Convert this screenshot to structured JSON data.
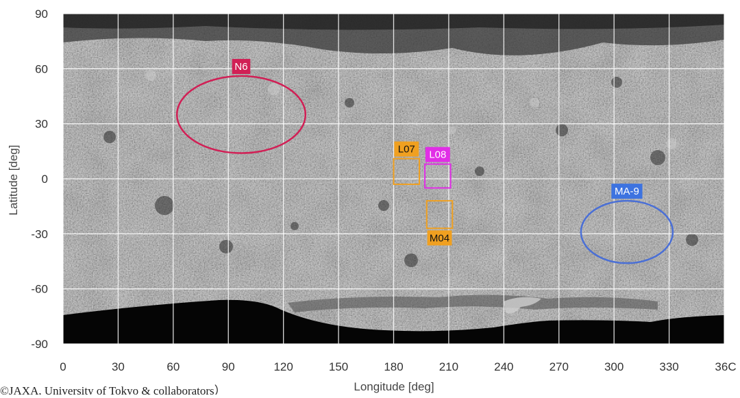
{
  "map": {
    "x_axis": {
      "label": "Longitude [deg]",
      "range": [
        0,
        360
      ],
      "ticks": [
        0,
        30,
        60,
        90,
        120,
        150,
        180,
        210,
        240,
        270,
        300,
        330
      ],
      "last_tick_label": "36C",
      "last_tick_value": 360
    },
    "y_axis": {
      "label": "Latitude [deg]",
      "range": [
        -90,
        90
      ],
      "ticks": [
        90,
        60,
        30,
        0,
        -30,
        -60,
        -90
      ]
    },
    "grid": true,
    "base_layer": "asteroid surface mosaic (grayscale)",
    "sites": [
      {
        "label": "N6",
        "shape": "ellipse",
        "lon": 97,
        "lat": 35,
        "lon_radius": 35,
        "lat_radius": 21,
        "color": "#d11f55",
        "label_color": "#ffffff",
        "label_bg": "#d11f55",
        "label_pos": "above"
      },
      {
        "label": "L07",
        "shape": "rect",
        "lon_range": [
          180,
          194
        ],
        "lat_range": [
          -3,
          11
        ],
        "color": "#f0a020",
        "label_color": "#111111",
        "label_bg": "#f0a020",
        "label_pos": "above"
      },
      {
        "label": "L08",
        "shape": "rect",
        "lon_range": [
          197,
          211
        ],
        "lat_range": [
          -5,
          8
        ],
        "color": "#e12ee6",
        "label_color": "#ffffff",
        "label_bg": "#e12ee6",
        "label_pos": "above"
      },
      {
        "label": "M04",
        "shape": "rect",
        "lon_range": [
          198,
          212
        ],
        "lat_range": [
          -27,
          -12
        ],
        "color": "#f0a020",
        "label_color": "#111111",
        "label_bg": "#f0a020",
        "label_pos": "below"
      },
      {
        "label": "MA-9",
        "shape": "ellipse",
        "lon": 307,
        "lat": -29,
        "lon_radius": 25,
        "lat_radius": 17,
        "color": "#4a6fd6",
        "label_color": "#ffffff",
        "label_bg": "#3d73e0",
        "label_pos": "above"
      }
    ]
  },
  "credit": "©JAXA, University of Tokyo & collaborators）"
}
